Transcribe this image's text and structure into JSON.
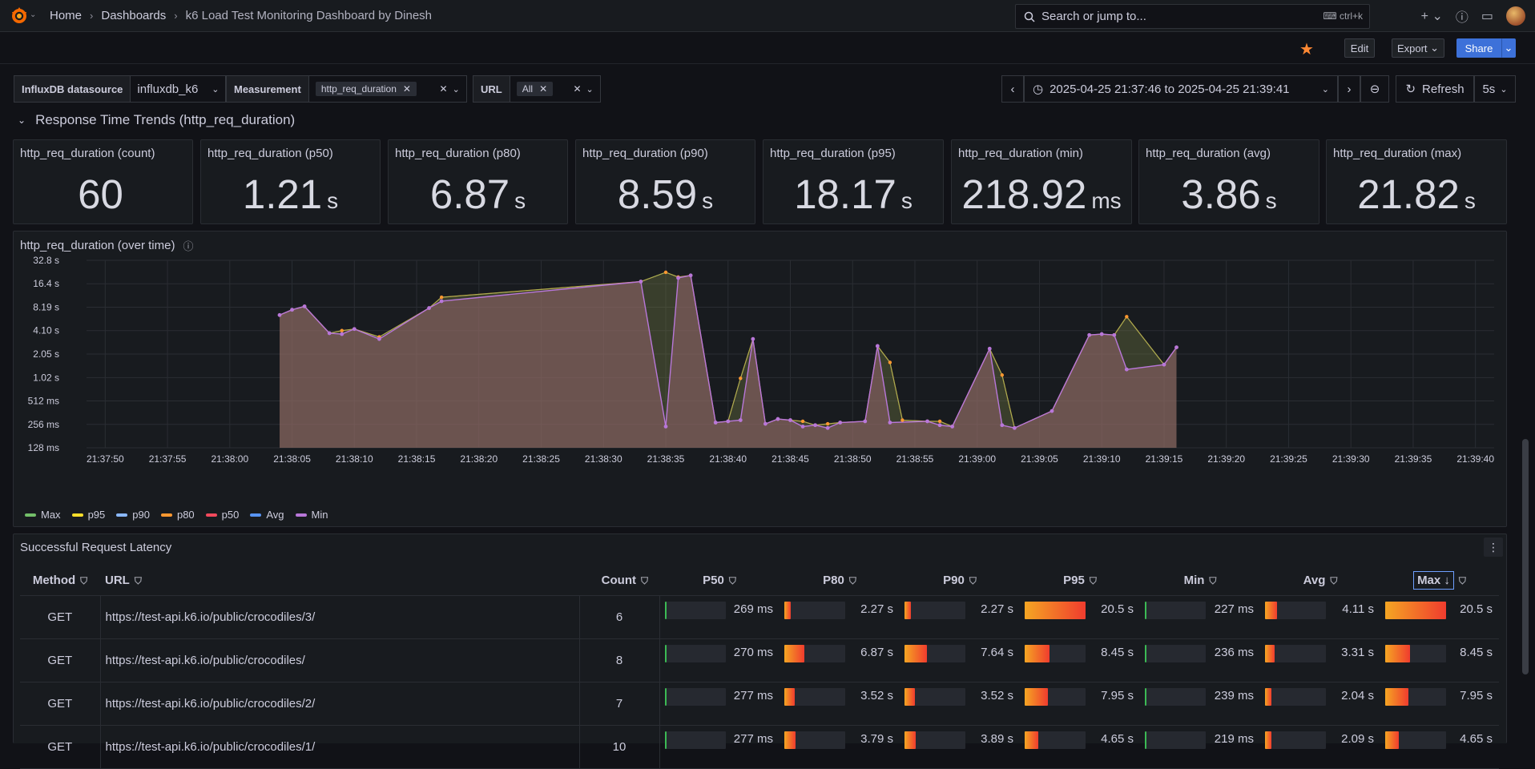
{
  "breadcrumbs": {
    "home": "Home",
    "dashboards": "Dashboards",
    "title": "k6 Load Test Monitoring Dashboard by Dinesh"
  },
  "search": {
    "placeholder": "Search or jump to...",
    "shortcut": "ctrl+k"
  },
  "toolbar": {
    "edit": "Edit",
    "export": "Export",
    "share": "Share"
  },
  "variables": {
    "datasource_label": "InfluxDB datasource",
    "datasource_value": "influxdb_k6",
    "measurement_label": "Measurement",
    "measurement_value": "http_req_duration",
    "url_label": "URL",
    "url_value": "All"
  },
  "time": {
    "range": "2025-04-25 21:37:46 to 2025-04-25 21:39:41",
    "refresh": "Refresh",
    "interval": "5s"
  },
  "row_title": "Response Time Trends (http_req_duration)",
  "stats": [
    {
      "title": "http_req_duration (count)",
      "value": "60",
      "unit": ""
    },
    {
      "title": "http_req_duration (p50)",
      "value": "1.21",
      "unit": "s"
    },
    {
      "title": "http_req_duration (p80)",
      "value": "6.87",
      "unit": "s"
    },
    {
      "title": "http_req_duration (p90)",
      "value": "8.59",
      "unit": "s"
    },
    {
      "title": "http_req_duration (p95)",
      "value": "18.17",
      "unit": "s"
    },
    {
      "title": "http_req_duration (min)",
      "value": "218.92",
      "unit": "ms"
    },
    {
      "title": "http_req_duration (avg)",
      "value": "3.86",
      "unit": "s"
    },
    {
      "title": "http_req_duration (max)",
      "value": "21.82",
      "unit": "s"
    }
  ],
  "timeseries_title": "http_req_duration (over time)",
  "chart_data": {
    "type": "area",
    "title": "http_req_duration (over time)",
    "y_scale": "log2",
    "y_ticks": [
      "128 ms",
      "256 ms",
      "512 ms",
      "1.02 s",
      "2.05 s",
      "4.10 s",
      "8.19 s",
      "16.4 s",
      "32.8 s"
    ],
    "y_tick_seconds": [
      0.128,
      0.256,
      0.512,
      1.02,
      2.05,
      4.1,
      8.19,
      16.4,
      32.8
    ],
    "x_ticks": [
      "21:37:50",
      "21:37:55",
      "21:38:00",
      "21:38:05",
      "21:38:10",
      "21:38:15",
      "21:38:20",
      "21:38:25",
      "21:38:30",
      "21:38:35",
      "21:38:40",
      "21:38:45",
      "21:38:50",
      "21:38:55",
      "21:39:00",
      "21:39:05",
      "21:39:10",
      "21:39:15",
      "21:39:20",
      "21:39:25",
      "21:39:30",
      "21:39:35",
      "21:39:40"
    ],
    "x_start_seconds": 0,
    "x_tick_step": 5,
    "series": [
      {
        "name": "Max",
        "color": "#73bf69"
      },
      {
        "name": "p95",
        "color": "#fade2a"
      },
      {
        "name": "p90",
        "color": "#8ab8ff"
      },
      {
        "name": "p80",
        "color": "#ff9830"
      },
      {
        "name": "p50",
        "color": "#f2495c"
      },
      {
        "name": "Avg",
        "color": "#5794f2"
      },
      {
        "name": "Min",
        "color": "#b877d9"
      }
    ],
    "min_series": [
      [
        14,
        6.5
      ],
      [
        15,
        7.6
      ],
      [
        16,
        8.4
      ],
      [
        18,
        3.8
      ],
      [
        19,
        3.7
      ],
      [
        20,
        4.3
      ],
      [
        22,
        3.2
      ],
      [
        26,
        8.0
      ],
      [
        27,
        9.8
      ],
      [
        43,
        17.5
      ],
      [
        45,
        0.24
      ],
      [
        46,
        19.5
      ],
      [
        47,
        21.0
      ],
      [
        49,
        0.27
      ],
      [
        50,
        0.28
      ],
      [
        51,
        0.29
      ],
      [
        52,
        3.2
      ],
      [
        53,
        0.26
      ],
      [
        54,
        0.3
      ],
      [
        55,
        0.29
      ],
      [
        56,
        0.24
      ],
      [
        57,
        0.25
      ],
      [
        58,
        0.23
      ],
      [
        59,
        0.27
      ],
      [
        61,
        0.28
      ],
      [
        62,
        2.6
      ],
      [
        63,
        0.27
      ],
      [
        66,
        0.28
      ],
      [
        67,
        0.25
      ],
      [
        68,
        0.24
      ],
      [
        71,
        2.4
      ],
      [
        72,
        0.25
      ],
      [
        73,
        0.23
      ],
      [
        76,
        0.38
      ],
      [
        79,
        3.6
      ],
      [
        80,
        3.7
      ],
      [
        81,
        3.6
      ],
      [
        82,
        1.3
      ],
      [
        85,
        1.5
      ],
      [
        86,
        2.5
      ]
    ],
    "max_series": [
      [
        14,
        6.5
      ],
      [
        15,
        7.6
      ],
      [
        16,
        8.4
      ],
      [
        18,
        3.8
      ],
      [
        19,
        4.1
      ],
      [
        20,
        4.3
      ],
      [
        22,
        3.4
      ],
      [
        26,
        8.0
      ],
      [
        27,
        11.0
      ],
      [
        43,
        17.5
      ],
      [
        45,
        23.0
      ],
      [
        46,
        20.0
      ],
      [
        47,
        21.0
      ],
      [
        49,
        0.27
      ],
      [
        50,
        0.28
      ],
      [
        51,
        1.0
      ],
      [
        52,
        3.2
      ],
      [
        53,
        0.26
      ],
      [
        54,
        0.3
      ],
      [
        55,
        0.29
      ],
      [
        56,
        0.28
      ],
      [
        57,
        0.25
      ],
      [
        58,
        0.26
      ],
      [
        59,
        0.27
      ],
      [
        61,
        0.28
      ],
      [
        62,
        2.6
      ],
      [
        63,
        1.6
      ],
      [
        64,
        0.29
      ],
      [
        66,
        0.28
      ],
      [
        67,
        0.28
      ],
      [
        68,
        0.24
      ],
      [
        71,
        2.4
      ],
      [
        72,
        1.1
      ],
      [
        73,
        0.23
      ],
      [
        76,
        0.38
      ],
      [
        79,
        3.6
      ],
      [
        80,
        3.7
      ],
      [
        81,
        3.6
      ],
      [
        82,
        6.2
      ],
      [
        85,
        1.5
      ],
      [
        86,
        2.5
      ]
    ]
  },
  "table": {
    "title": "Successful Request Latency",
    "headers": [
      "Method",
      "URL",
      "Count",
      "P50",
      "P80",
      "P90",
      "P95",
      "Min",
      "Avg",
      "Max"
    ],
    "rows": [
      {
        "method": "GET",
        "url": "https://test-api.k6.io/public/crocodiles/3/",
        "count": "6",
        "p50": "269 ms",
        "p80": "2.27 s",
        "p90": "2.27 s",
        "p95": "20.5 s",
        "min": "227 ms",
        "avg": "4.11 s",
        "max": "20.5 s",
        "f": [
          0.0131,
          0.1107,
          0.1107,
          1.0,
          0.0111,
          0.2005,
          1.0
        ]
      },
      {
        "method": "GET",
        "url": "https://test-api.k6.io/public/crocodiles/",
        "count": "8",
        "p50": "270 ms",
        "p80": "6.87 s",
        "p90": "7.64 s",
        "p95": "8.45 s",
        "min": "236 ms",
        "avg": "3.31 s",
        "max": "8.45 s",
        "f": [
          0.0132,
          0.3351,
          0.3727,
          0.4122,
          0.0115,
          0.1615,
          0.4122
        ]
      },
      {
        "method": "GET",
        "url": "https://test-api.k6.io/public/crocodiles/2/",
        "count": "7",
        "p50": "277 ms",
        "p80": "3.52 s",
        "p90": "3.52 s",
        "p95": "7.95 s",
        "min": "239 ms",
        "avg": "2.04 s",
        "max": "7.95 s",
        "f": [
          0.0135,
          0.1717,
          0.1717,
          0.3878,
          0.0117,
          0.0995,
          0.3878
        ]
      },
      {
        "method": "GET",
        "url": "https://test-api.k6.io/public/crocodiles/1/",
        "count": "10",
        "p50": "277 ms",
        "p80": "3.79 s",
        "p90": "3.89 s",
        "p95": "4.65 s",
        "min": "219 ms",
        "avg": "2.09 s",
        "max": "4.65 s",
        "f": [
          0.0135,
          0.1849,
          0.1898,
          0.2268,
          0.0107,
          0.102,
          0.2268
        ]
      }
    ]
  }
}
